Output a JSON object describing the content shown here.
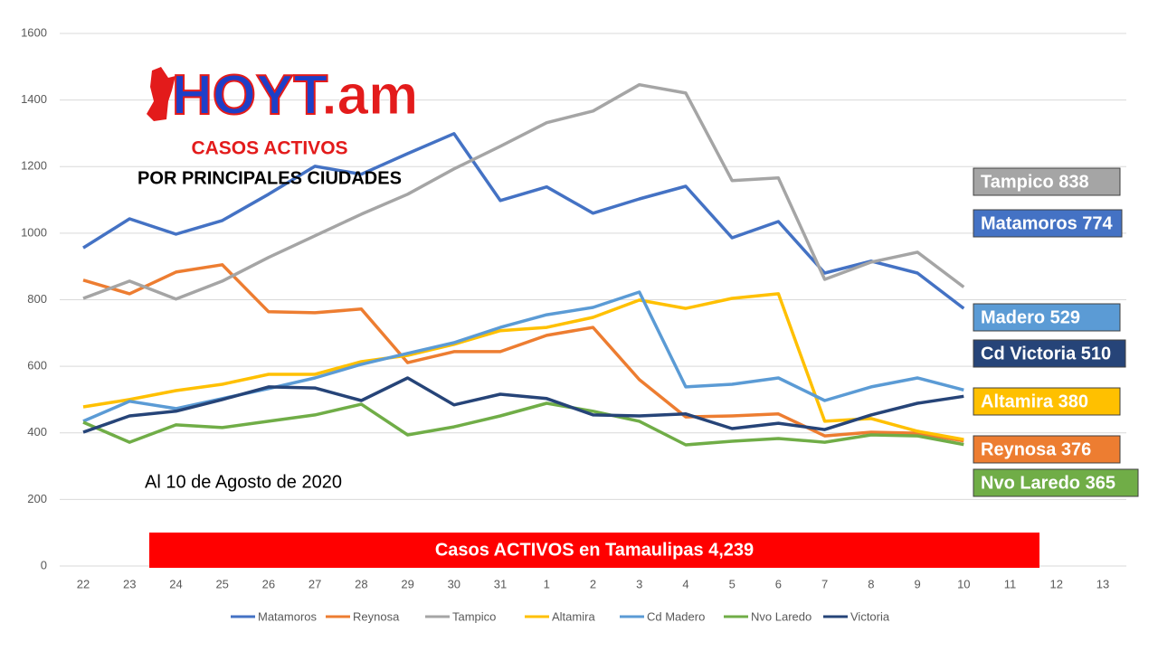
{
  "chart_data": {
    "type": "line",
    "logo": [
      "HOYT",
      ".am"
    ],
    "title": "CASOS ACTIVOS",
    "subtitle": "POR PRINCIPALES CIUDADES",
    "date_note": "Al 10 de Agosto de 2020",
    "banner": "Casos ACTIVOS en Tamaulipas 4,239",
    "categories": [
      "22",
      "23",
      "24",
      "25",
      "26",
      "27",
      "28",
      "29",
      "30",
      "31",
      "1",
      "2",
      "3",
      "4",
      "5",
      "6",
      "7",
      "8",
      "9",
      "10",
      "11",
      "12",
      "13"
    ],
    "ylim": [
      0,
      1600
    ],
    "yticks": [
      0,
      200,
      400,
      600,
      800,
      1000,
      1200,
      1400,
      1600
    ],
    "grid": true,
    "legend": "bottom",
    "series": [
      {
        "name": "Matamoros",
        "color": "#4472c4",
        "values": [
          956,
          1043,
          997,
          1038,
          1117,
          1201,
          1177,
          1239,
          1299,
          1098,
          1139,
          1060,
          1103,
          1141,
          986,
          1035,
          880,
          916,
          880,
          774,
          null,
          null,
          null
        ]
      },
      {
        "name": "Reynosa",
        "color": "#ed7d31",
        "values": [
          859,
          818,
          883,
          905,
          764,
          761,
          772,
          611,
          644,
          644,
          693,
          717,
          560,
          448,
          451,
          457,
          391,
          402,
          399,
          376,
          null,
          null,
          null
        ]
      },
      {
        "name": "Tampico",
        "color": "#a5a5a5",
        "values": [
          804,
          856,
          802,
          856,
          927,
          992,
          1057,
          1117,
          1193,
          1261,
          1332,
          1367,
          1446,
          1421,
          1158,
          1166,
          861,
          913,
          943,
          838,
          null,
          null,
          null
        ]
      },
      {
        "name": "Altamira",
        "color": "#ffc000",
        "values": [
          478,
          500,
          527,
          546,
          576,
          576,
          614,
          633,
          666,
          707,
          717,
          747,
          799,
          774,
          804,
          818,
          435,
          443,
          405,
          380,
          null,
          null,
          null
        ]
      },
      {
        "name": "Cd Madero",
        "color": "#5b9bd5",
        "values": [
          435,
          495,
          473,
          503,
          533,
          565,
          606,
          639,
          671,
          717,
          755,
          777,
          823,
          538,
          546,
          565,
          497,
          538,
          565,
          529,
          null,
          null,
          null
        ]
      },
      {
        "name": "Nvo Laredo",
        "color": "#70ad47",
        "values": [
          432,
          372,
          424,
          416,
          435,
          454,
          486,
          394,
          418,
          451,
          489,
          465,
          435,
          364,
          375,
          383,
          372,
          394,
          391,
          365,
          null,
          null,
          null
        ]
      },
      {
        "name": "Victoria",
        "color": "#264478",
        "values": [
          402,
          451,
          465,
          500,
          538,
          535,
          497,
          565,
          484,
          516,
          503,
          454,
          451,
          457,
          413,
          429,
          410,
          454,
          489,
          510,
          null,
          null,
          null
        ]
      }
    ],
    "end_labels": [
      {
        "text": "Tampico 838",
        "color": "#a5a5a5"
      },
      {
        "text": "Matamoros 774",
        "color": "#4472c4"
      },
      {
        "text": "Madero 529",
        "color": "#5b9bd5"
      },
      {
        "text": "Cd Victoria 510",
        "color": "#264478"
      },
      {
        "text": "Altamira 380",
        "color": "#ffc000"
      },
      {
        "text": "Reynosa 376",
        "color": "#ed7d31"
      },
      {
        "text": "Nvo Laredo 365",
        "color": "#70ad47"
      }
    ]
  }
}
